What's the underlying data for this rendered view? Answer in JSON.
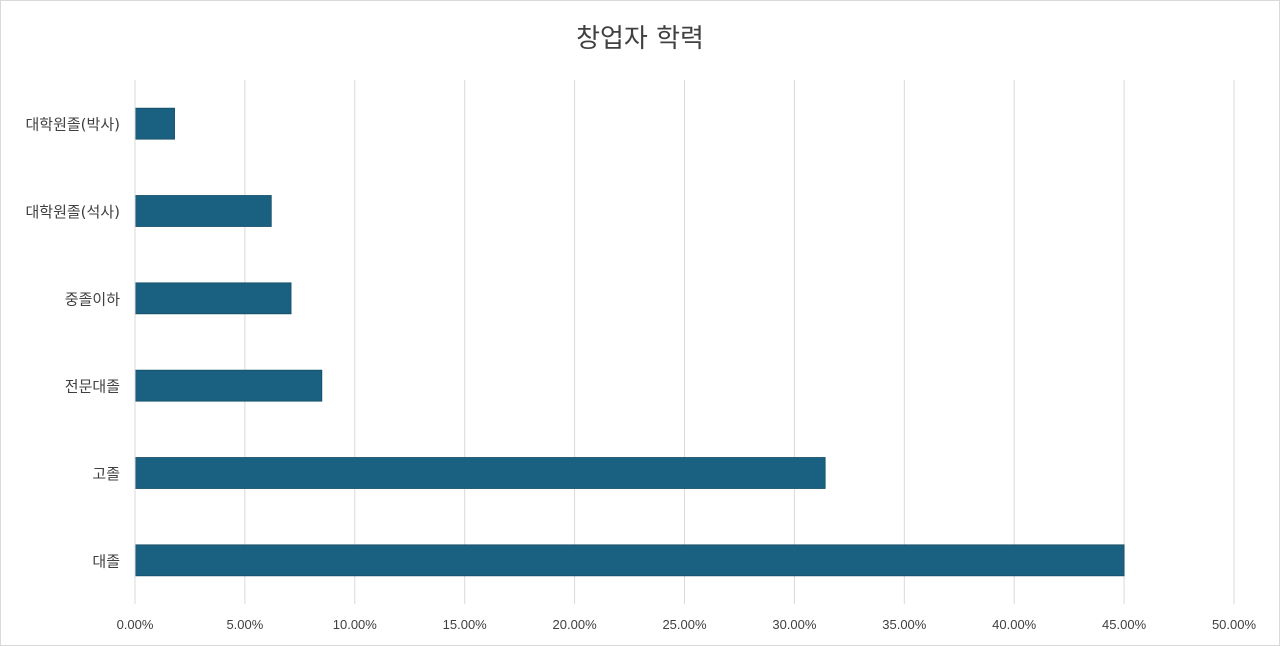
{
  "chart_data": {
    "type": "bar",
    "orientation": "horizontal",
    "title": "창업자 학력",
    "categories": [
      "대학원졸(박사)",
      "대학원졸(석사)",
      "중졸이하",
      "전문대졸",
      "고졸",
      "대졸"
    ],
    "values": [
      1.8,
      6.2,
      7.1,
      8.5,
      31.4,
      45.0
    ],
    "xlim": [
      0,
      50
    ],
    "x_ticks": [
      "0.00%",
      "5.00%",
      "10.00%",
      "15.00%",
      "20.00%",
      "25.00%",
      "30.00%",
      "35.00%",
      "40.00%",
      "45.00%",
      "50.00%"
    ],
    "x_tick_values": [
      0,
      5,
      10,
      15,
      20,
      25,
      30,
      35,
      40,
      45,
      50
    ],
    "grid": true,
    "legend": "none",
    "bar_color": "#1a6080",
    "grid_color": "#d9d9d9"
  }
}
